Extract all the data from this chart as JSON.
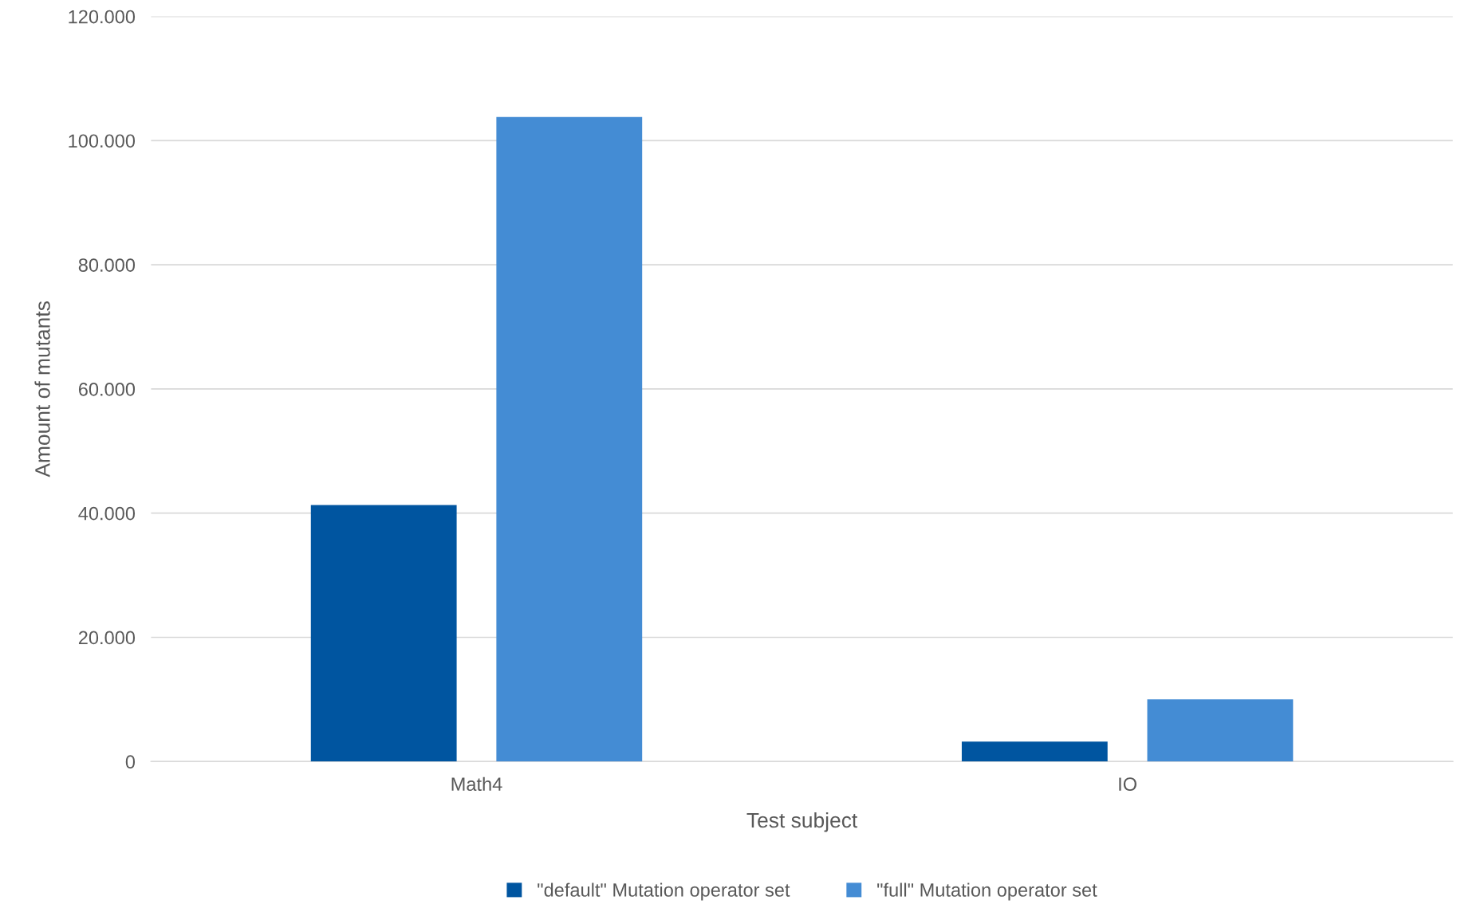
{
  "chart_data": {
    "type": "bar",
    "xlabel": "Test subject",
    "ylabel": "Amount of mutants",
    "categories": [
      "Math4",
      "IO"
    ],
    "series": [
      {
        "name": "\"default\" Mutation operator set",
        "color": "#0055a0",
        "values": [
          41300,
          3200
        ]
      },
      {
        "name": "\"full\" Mutation operator set",
        "color": "#448cd4",
        "values": [
          103800,
          10000
        ]
      }
    ],
    "ylim": [
      0,
      120000
    ],
    "yticks": [
      {
        "value": 0,
        "label": "0"
      },
      {
        "value": 20000,
        "label": "20.000"
      },
      {
        "value": 40000,
        "label": "40.000"
      },
      {
        "value": 60000,
        "label": "60.000"
      },
      {
        "value": 80000,
        "label": "80.000"
      },
      {
        "value": 100000,
        "label": "100.000"
      },
      {
        "value": 120000,
        "label": "120.000"
      }
    ],
    "grid": "y",
    "legend": "bottom"
  }
}
